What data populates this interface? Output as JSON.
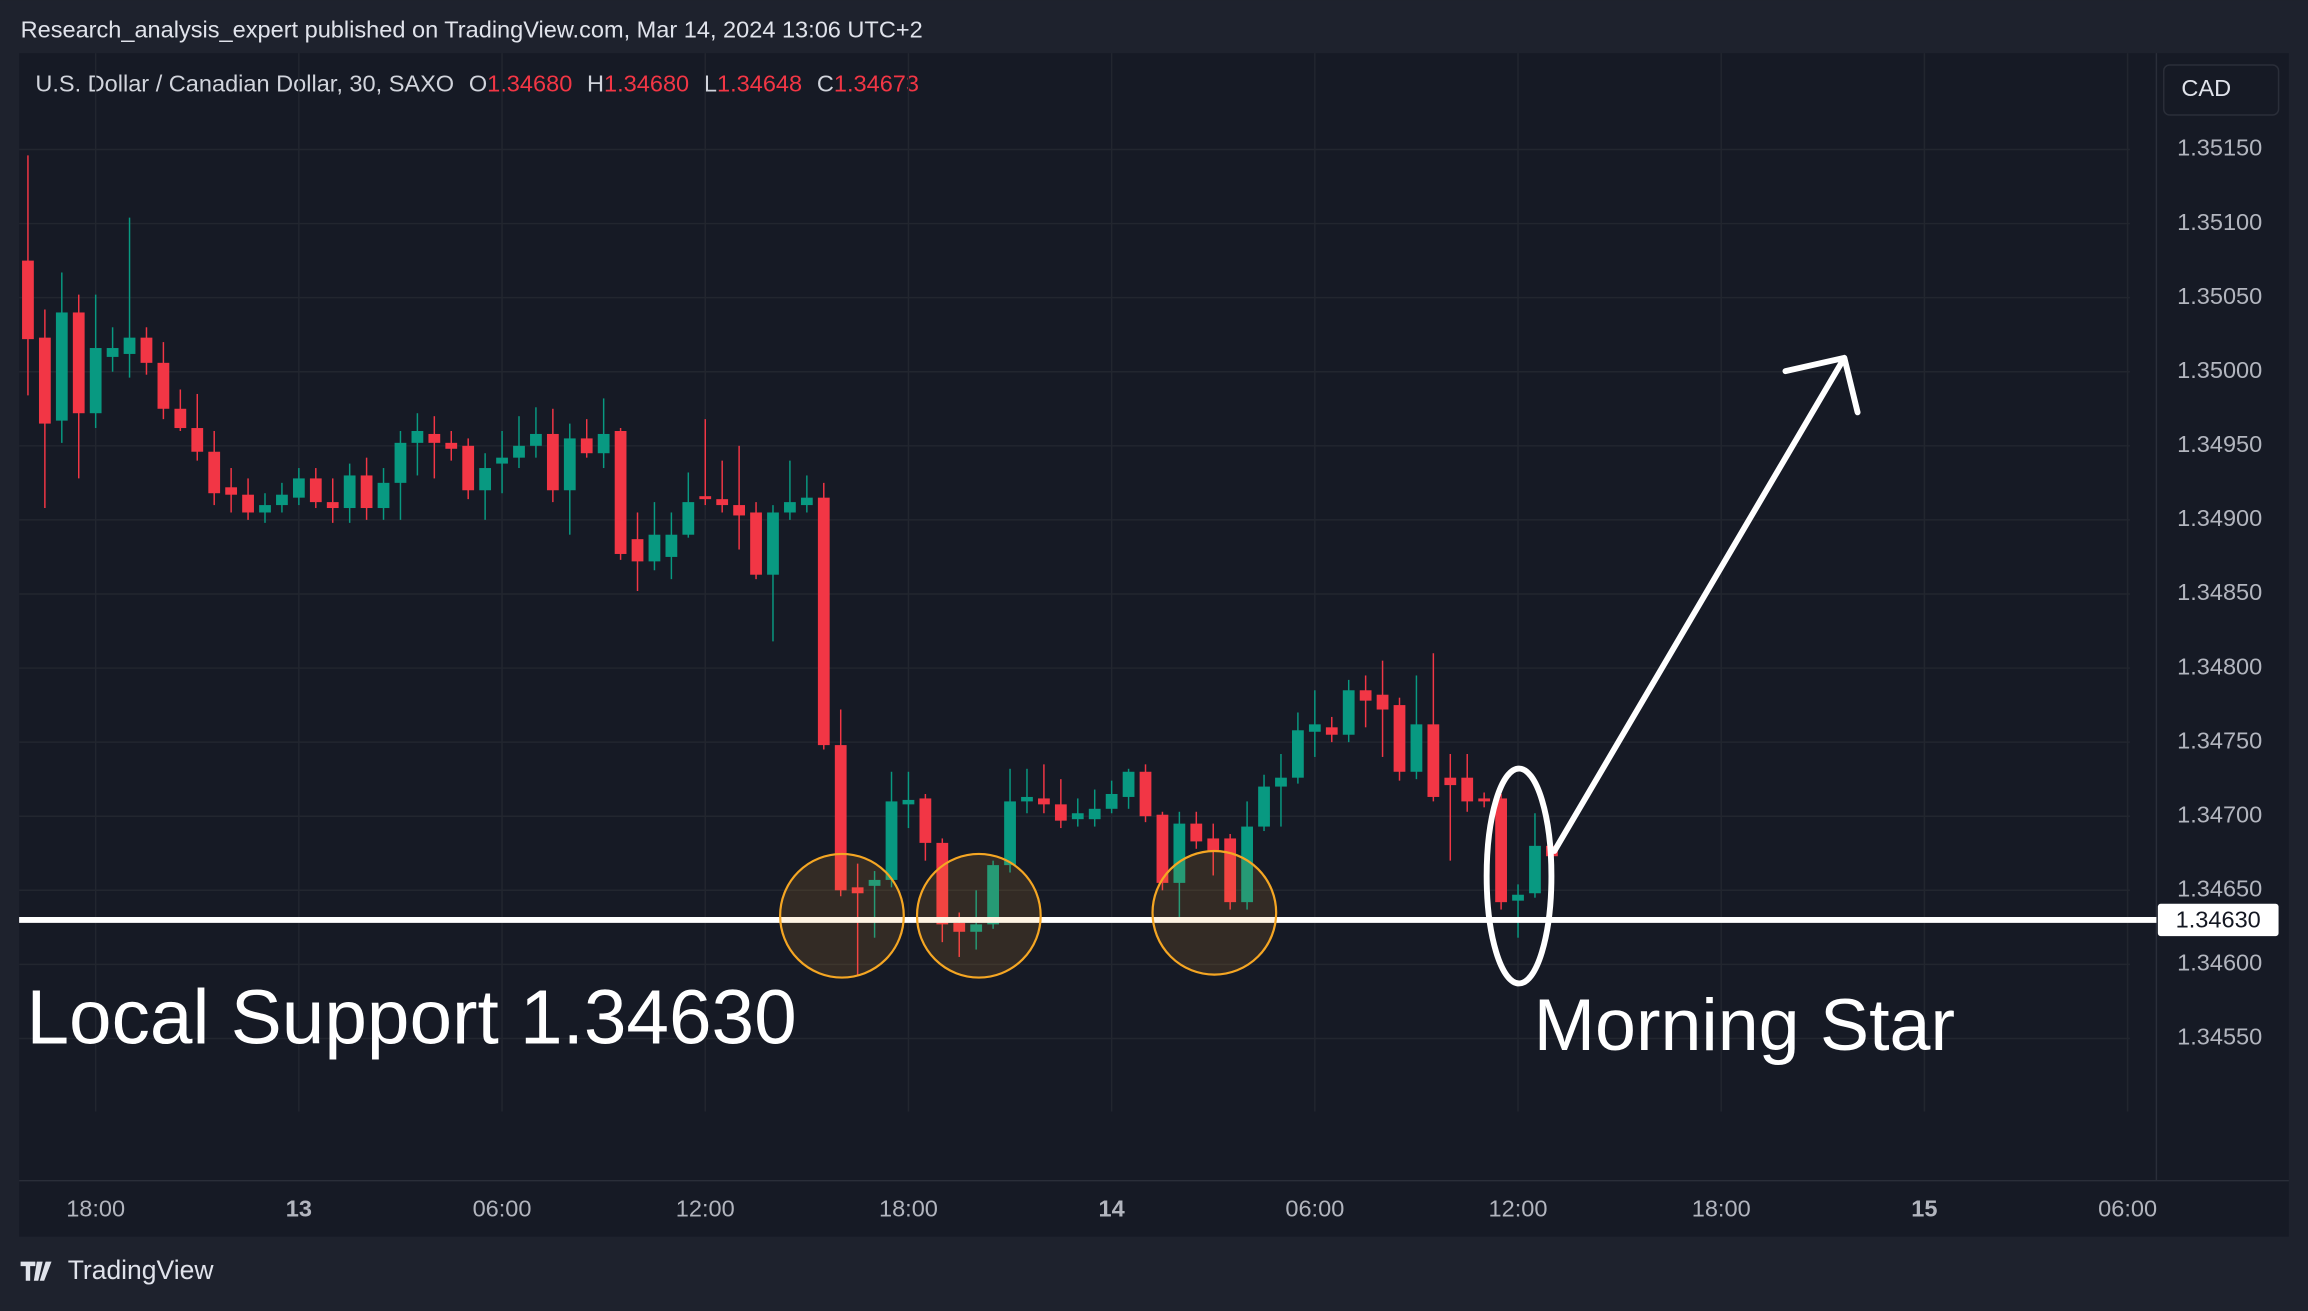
{
  "header": "Research_analysis_expert published on TradingView.com, Mar 14, 2024 13:06 UTC+2",
  "footer": "TradingView",
  "currency": "CAD",
  "chart_data": {
    "type": "candlestick",
    "legend": {
      "symbol": "U.S. Dollar / Canadian Dollar, 30, SAXO",
      "items": [
        {
          "label": "O",
          "value": "1.34680"
        },
        {
          "label": "H",
          "value": "1.34680"
        },
        {
          "label": "L",
          "value": "1.34648"
        },
        {
          "label": "C",
          "value": "1.34673"
        }
      ]
    },
    "up_color": "#089981",
    "down_color": "#f23645",
    "open": [
      1.35075,
      1.35023,
      1.34967,
      1.3504,
      1.34972,
      1.3501,
      1.35012,
      1.35023,
      1.35006,
      1.34975,
      1.34962,
      1.34946,
      1.34922,
      1.34917,
      1.34905,
      1.3491,
      1.34915,
      1.34928,
      1.34912,
      1.34908,
      1.3493,
      1.34908,
      1.34925,
      1.34952,
      1.34958,
      1.34952,
      1.3495,
      1.3492,
      1.34938,
      1.34942,
      1.3495,
      1.34958,
      1.3492,
      1.34955,
      1.34945,
      1.3496,
      1.34887,
      1.34872,
      1.34875,
      1.3489,
      1.34916,
      1.34914,
      1.3491,
      1.34905,
      1.34863,
      1.34905,
      1.3491,
      1.34915,
      1.34748,
      1.34652,
      1.34653,
      1.34657,
      1.34708,
      1.34712,
      1.34682,
      1.34628,
      1.34622,
      1.34627,
      1.34667,
      1.3471,
      1.34712,
      1.34708,
      1.34698,
      1.34698,
      1.34705,
      1.34713,
      1.3473,
      1.34701,
      1.34655,
      1.34695,
      1.34685,
      1.34685,
      1.34642,
      1.34693,
      1.3472,
      1.34726,
      1.34757,
      1.3476,
      1.34755,
      1.34785,
      1.34782,
      1.34775,
      1.3473,
      1.34762,
      1.34726,
      1.34726,
      1.34712,
      1.34712,
      1.34643,
      1.34648,
      1.3468
    ],
    "high": [
      1.35146,
      1.35042,
      1.35067,
      1.35052,
      1.35052,
      1.3503,
      1.35104,
      1.3503,
      1.3502,
      1.34988,
      1.34985,
      1.3496,
      1.34935,
      1.34928,
      1.34918,
      1.34925,
      1.34935,
      1.34935,
      1.34928,
      1.34938,
      1.34942,
      1.34935,
      1.3496,
      1.34972,
      1.3497,
      1.3496,
      1.34955,
      1.34945,
      1.3496,
      1.3497,
      1.34976,
      1.34975,
      1.34965,
      1.34968,
      1.34982,
      1.34962,
      1.34905,
      1.34912,
      1.34905,
      1.34932,
      1.34968,
      1.3494,
      1.3495,
      1.34912,
      1.3491,
      1.3494,
      1.3493,
      1.34925,
      1.34772,
      1.34668,
      1.34663,
      1.3473,
      1.3473,
      1.34715,
      1.34685,
      1.34635,
      1.3465,
      1.3467,
      1.34732,
      1.34732,
      1.34735,
      1.34725,
      1.34712,
      1.34718,
      1.34724,
      1.34732,
      1.34735,
      1.34703,
      1.34703,
      1.34703,
      1.34695,
      1.34688,
      1.3471,
      1.34728,
      1.34742,
      1.3477,
      1.34785,
      1.34767,
      1.34792,
      1.34795,
      1.34805,
      1.3478,
      1.34795,
      1.3481,
      1.34742,
      1.34742,
      1.34716,
      1.34715,
      1.34654,
      1.34702,
      1.3468
    ],
    "low": [
      1.34984,
      1.34908,
      1.34952,
      1.34928,
      1.34962,
      1.35,
      1.34996,
      1.34998,
      1.34968,
      1.3496,
      1.3494,
      1.3491,
      1.34905,
      1.349,
      1.34898,
      1.34905,
      1.3491,
      1.34908,
      1.34898,
      1.34898,
      1.349,
      1.349,
      1.349,
      1.3493,
      1.34928,
      1.3494,
      1.34914,
      1.349,
      1.34918,
      1.34935,
      1.34942,
      1.34912,
      1.3489,
      1.34942,
      1.34935,
      1.34873,
      1.34852,
      1.34866,
      1.3486,
      1.34888,
      1.3491,
      1.34905,
      1.3488,
      1.3486,
      1.34818,
      1.349,
      1.34905,
      1.34745,
      1.34646,
      1.34593,
      1.34618,
      1.34652,
      1.34692,
      1.3467,
      1.34615,
      1.34605,
      1.3461,
      1.34624,
      1.34662,
      1.34702,
      1.34702,
      1.34692,
      1.34693,
      1.34693,
      1.34702,
      1.34705,
      1.34696,
      1.3465,
      1.34632,
      1.34678,
      1.3466,
      1.34637,
      1.34637,
      1.3469,
      1.34693,
      1.34722,
      1.3474,
      1.3475,
      1.3475,
      1.3476,
      1.3474,
      1.34724,
      1.34725,
      1.3471,
      1.3467,
      1.34703,
      1.34706,
      1.34637,
      1.34618,
      1.34645,
      1.34648
    ],
    "close": [
      1.35022,
      1.34965,
      1.3504,
      1.34972,
      1.35016,
      1.35016,
      1.35023,
      1.35006,
      1.34975,
      1.34962,
      1.34946,
      1.34918,
      1.34917,
      1.34905,
      1.3491,
      1.34917,
      1.34928,
      1.34912,
      1.34908,
      1.3493,
      1.34908,
      1.34925,
      1.34952,
      1.3496,
      1.34952,
      1.34948,
      1.3492,
      1.34935,
      1.34942,
      1.3495,
      1.34958,
      1.3492,
      1.34955,
      1.34945,
      1.34958,
      1.34877,
      1.34872,
      1.3489,
      1.3489,
      1.34912,
      1.34914,
      1.3491,
      1.34903,
      1.34863,
      1.34905,
      1.34912,
      1.34915,
      1.34748,
      1.3465,
      1.34648,
      1.34657,
      1.3471,
      1.34711,
      1.34682,
      1.34627,
      1.34622,
      1.34627,
      1.34667,
      1.3471,
      1.34713,
      1.34708,
      1.34697,
      1.34702,
      1.34705,
      1.34715,
      1.3473,
      1.347,
      1.34655,
      1.34695,
      1.34683,
      1.34677,
      1.34642,
      1.34693,
      1.3472,
      1.34726,
      1.34758,
      1.34762,
      1.34755,
      1.34785,
      1.34778,
      1.34772,
      1.3473,
      1.34762,
      1.34713,
      1.34721,
      1.3471,
      1.3471,
      1.34642,
      1.34647,
      1.3468,
      1.34673
    ],
    "xlim": [
      -0.52,
      125.7
    ],
    "xticks": [
      {
        "value": 4,
        "label": "18:00"
      },
      {
        "value": 16,
        "label": "13"
      },
      {
        "value": 28,
        "label": "06:00"
      },
      {
        "value": 40,
        "label": "12:00"
      },
      {
        "value": 52,
        "label": "18:00"
      },
      {
        "value": 64,
        "label": "14"
      },
      {
        "value": 76,
        "label": "06:00"
      },
      {
        "value": 88,
        "label": "12:00"
      },
      {
        "value": 100,
        "label": "18:00"
      },
      {
        "value": 112,
        "label": "15"
      },
      {
        "value": 124,
        "label": "06:00"
      }
    ],
    "ylim": [
      1.34454,
      1.35215
    ],
    "yticks": [
      {
        "value": 1.3455,
        "label": "1.34550"
      },
      {
        "value": 1.346,
        "label": "1.34600"
      },
      {
        "value": 1.3465,
        "label": "1.34650"
      },
      {
        "value": 1.347,
        "label": "1.34700"
      },
      {
        "value": 1.3475,
        "label": "1.34750"
      },
      {
        "value": 1.348,
        "label": "1.34800"
      },
      {
        "value": 1.3485,
        "label": "1.34850"
      },
      {
        "value": 1.349,
        "label": "1.34900"
      },
      {
        "value": 1.3495,
        "label": "1.34950"
      },
      {
        "value": 1.35,
        "label": "1.35000"
      },
      {
        "value": 1.3505,
        "label": "1.35050"
      },
      {
        "value": 1.351,
        "label": "1.35100"
      },
      {
        "value": 1.3515,
        "label": "1.35150"
      }
    ],
    "grid": true,
    "support": {
      "value": 1.3463,
      "label": "1.34630"
    },
    "annotations": [
      "Local Support 1.34630",
      "Morning Star"
    ]
  }
}
